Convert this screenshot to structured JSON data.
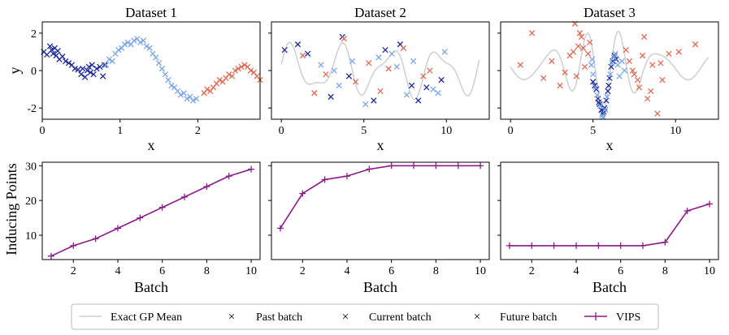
{
  "colors": {
    "exact": "#cfcfcf",
    "past": "#1f2a9a",
    "current": "#7aa7ea",
    "future": "#de6b55",
    "vips": "#8b1a8b"
  },
  "legend": {
    "exact": "Exact GP Mean",
    "past": "Past batch",
    "current": "Current batch",
    "future": "Future batch",
    "vips": "VIPS"
  },
  "chart_data": [
    {
      "type": "scatter",
      "title": "Dataset 1",
      "xlabel": "x",
      "ylabel": "y",
      "xlim": [
        0,
        2.8
      ],
      "ylim": [
        -2.6,
        2.6
      ],
      "xticks": [
        0,
        1,
        2
      ],
      "yticks": [
        -2,
        0,
        2
      ],
      "series": [
        {
          "name": "Past batch",
          "x": [
            0.02,
            0.06,
            0.1,
            0.12,
            0.14,
            0.16,
            0.18,
            0.2,
            0.22,
            0.26,
            0.3,
            0.34,
            0.38,
            0.42,
            0.46,
            0.5,
            0.52,
            0.55,
            0.58,
            0.6,
            0.62,
            0.64,
            0.66,
            0.7,
            0.74,
            0.78,
            0.8
          ],
          "y": [
            1.0,
            0.85,
            1.3,
            1.1,
            0.9,
            1.2,
            0.8,
            1.05,
            0.6,
            0.75,
            0.5,
            0.4,
            0.3,
            0.1,
            0.05,
            -0.2,
            0.1,
            -0.35,
            0.0,
            0.2,
            -0.1,
            0.3,
            -0.2,
            0.1,
            0.2,
            -0.3,
            0.3
          ]
        },
        {
          "name": "Current batch",
          "x": [
            0.82,
            0.86,
            0.9,
            0.94,
            0.98,
            1.02,
            1.06,
            1.1,
            1.14,
            1.18,
            1.22,
            1.26,
            1.3,
            1.34,
            1.38,
            1.42,
            1.46,
            1.5,
            1.54,
            1.58,
            1.62,
            1.66,
            1.7,
            1.74,
            1.78,
            1.82,
            1.86,
            1.9,
            1.94,
            1.98
          ],
          "y": [
            0.3,
            0.6,
            0.5,
            0.9,
            1.1,
            1.2,
            1.4,
            1.5,
            1.4,
            1.6,
            1.7,
            1.5,
            1.6,
            1.3,
            1.2,
            0.9,
            0.7,
            0.4,
            0.1,
            -0.2,
            -0.5,
            -0.8,
            -0.9,
            -1.1,
            -1.3,
            -1.2,
            -1.5,
            -1.4,
            -1.6,
            -1.5
          ]
        },
        {
          "name": "Future batch",
          "x": [
            2.08,
            2.12,
            2.16,
            2.2,
            2.24,
            2.28,
            2.32,
            2.36,
            2.4,
            2.44,
            2.48,
            2.52,
            2.56,
            2.6,
            2.64,
            2.68,
            2.72,
            2.76,
            2.8
          ],
          "y": [
            -1.2,
            -1.0,
            -1.1,
            -0.9,
            -0.7,
            -0.5,
            -0.6,
            -0.4,
            -0.2,
            -0.3,
            0.0,
            0.1,
            0.2,
            0.3,
            0.2,
            0.0,
            -0.1,
            -0.3,
            -0.5
          ]
        }
      ]
    },
    {
      "type": "scatter",
      "title": "Dataset 2",
      "xlabel": "x",
      "xlim": [
        -0.6,
        12.6
      ],
      "ylim": [
        -2.6,
        2.6
      ],
      "xticks": [
        0,
        5,
        10
      ],
      "yticks": [
        -2,
        0,
        2
      ],
      "series": [
        {
          "name": "Past batch",
          "x": [
            0.2,
            1.0,
            1.6,
            3.0,
            3.7,
            4.1,
            5.6,
            6.3,
            7.2,
            7.9,
            8.3,
            8.8,
            9.7
          ],
          "y": [
            1.1,
            1.4,
            0.9,
            -1.4,
            1.8,
            -0.3,
            -1.6,
            1.1,
            1.4,
            -0.8,
            -1.6,
            -0.9,
            -0.5
          ]
        },
        {
          "name": "Current batch",
          "x": [
            2.4,
            3.2,
            3.5,
            4.3,
            5.1,
            5.9,
            6.7,
            7.0,
            7.6,
            8.0,
            9.2,
            9.5,
            9.9
          ],
          "y": [
            0.3,
            0.0,
            -0.8,
            0.5,
            -1.8,
            0.7,
            0.9,
            0.2,
            -1.3,
            0.5,
            -1.0,
            -1.2,
            1.0
          ]
        },
        {
          "name": "Future batch",
          "x": [
            1.3,
            2.0,
            2.7,
            3.8,
            4.5,
            5.3,
            6.0,
            6.5,
            7.4,
            8.6,
            9.0
          ],
          "y": [
            0.8,
            -1.2,
            -0.2,
            1.7,
            -0.6,
            0.4,
            -1.1,
            0.1,
            1.2,
            -0.3,
            0.0
          ]
        }
      ]
    },
    {
      "type": "scatter",
      "title": "Dataset 3",
      "xlabel": "x",
      "xlim": [
        -0.6,
        12.6
      ],
      "ylim": [
        -2.6,
        2.6
      ],
      "xticks": [
        0,
        5,
        10
      ],
      "yticks": [
        -2,
        0,
        2
      ],
      "series": [
        {
          "name": "Past batch",
          "x": [
            5.0,
            5.2,
            5.3,
            5.4,
            5.5,
            5.6,
            5.7,
            5.8,
            5.9,
            6.0,
            6.1,
            6.2,
            6.3,
            6.4,
            5.1,
            5.35,
            5.65,
            5.95
          ],
          "y": [
            -0.6,
            -1.0,
            -1.5,
            -1.8,
            -2.1,
            -2.3,
            -2.0,
            -1.6,
            -1.1,
            -0.4,
            0.2,
            0.5,
            0.8,
            0.6,
            -0.8,
            -1.7,
            -2.2,
            -0.8
          ]
        },
        {
          "name": "Current batch",
          "x": [
            4.9,
            5.0,
            5.15,
            5.25,
            5.45,
            5.55,
            5.75,
            5.85,
            6.05,
            6.15,
            6.35,
            6.5,
            6.6,
            6.75,
            4.95,
            5.6,
            6.25,
            6.9
          ],
          "y": [
            0.3,
            -0.2,
            -0.9,
            -1.3,
            -1.9,
            -2.4,
            -2.1,
            -1.4,
            -0.2,
            0.4,
            0.9,
            0.3,
            -0.3,
            0.5,
            0.6,
            -2.5,
            0.7,
            0.0
          ]
        },
        {
          "name": "Future batch",
          "x": [
            0.6,
            1.3,
            2.0,
            2.5,
            3.0,
            3.3,
            3.6,
            3.9,
            4.1,
            4.3,
            4.5,
            4.7,
            4.8,
            7.2,
            7.5,
            7.8,
            8.0,
            8.3,
            8.6,
            8.9,
            9.2,
            9.6,
            10.2,
            11.2,
            3.8,
            4.0,
            4.2,
            4.4,
            7.0,
            7.4,
            7.7,
            8.1,
            8.5,
            9.1
          ],
          "y": [
            0.3,
            2.0,
            -0.4,
            0.5,
            -0.8,
            -0.1,
            0.8,
            2.5,
            1.3,
            1.8,
            0.2,
            0.9,
            1.5,
            0.5,
            -0.2,
            -0.9,
            0.8,
            -1.5,
            0.3,
            -2.3,
            -0.5,
            0.9,
            1.0,
            1.4,
            1.0,
            -0.3,
            2.0,
            1.2,
            1.1,
            0.0,
            -0.5,
            1.8,
            -1.1,
            0.4
          ]
        }
      ]
    },
    {
      "type": "line",
      "title": "",
      "xlabel": "Batch",
      "ylabel": "Inducing Points",
      "xlim": [
        0.6,
        10.4
      ],
      "ylim": [
        3,
        31
      ],
      "xticks": [
        2,
        4,
        6,
        8,
        10
      ],
      "yticks": [
        10,
        20,
        30
      ],
      "series": [
        {
          "name": "VIPS",
          "x": [
            1,
            2,
            3,
            4,
            5,
            6,
            7,
            8,
            9,
            10
          ],
          "y": [
            4,
            7,
            9,
            12,
            15,
            18,
            21,
            24,
            27,
            29
          ]
        }
      ]
    },
    {
      "type": "line",
      "title": "",
      "xlabel": "Batch",
      "xlim": [
        0.6,
        10.4
      ],
      "ylim": [
        3,
        31
      ],
      "xticks": [
        2,
        4,
        6,
        8,
        10
      ],
      "yticks": [
        10,
        20,
        30
      ],
      "series": [
        {
          "name": "VIPS",
          "x": [
            1,
            2,
            3,
            4,
            5,
            6,
            7,
            8,
            9,
            10
          ],
          "y": [
            12,
            22,
            26,
            27,
            29,
            30,
            30,
            30,
            30,
            30
          ]
        }
      ]
    },
    {
      "type": "line",
      "title": "",
      "xlabel": "Batch",
      "xlim": [
        0.6,
        10.4
      ],
      "ylim": [
        3,
        31
      ],
      "xticks": [
        2,
        4,
        6,
        8,
        10
      ],
      "yticks": [
        10,
        20,
        30
      ],
      "series": [
        {
          "name": "VIPS",
          "x": [
            1,
            2,
            3,
            4,
            5,
            6,
            7,
            8,
            9,
            10
          ],
          "y": [
            7,
            7,
            7,
            7,
            7,
            7,
            7,
            8,
            17,
            19
          ]
        }
      ]
    }
  ]
}
